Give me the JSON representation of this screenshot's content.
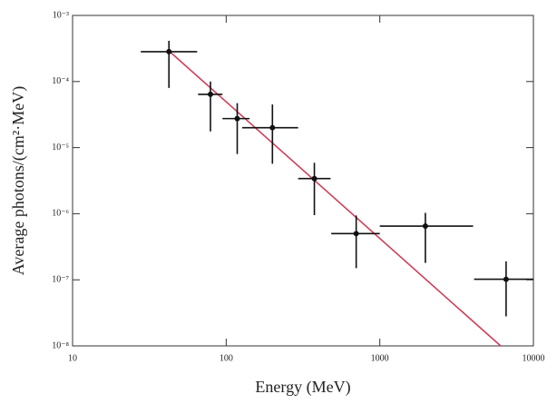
{
  "chart_data": {
    "type": "scatter",
    "x_label": "Energy (MeV)",
    "y_label": "Average photons/(cm²·MeV)",
    "xlog": true,
    "ylog": true,
    "xlim": [
      10,
      10000
    ],
    "ylim": [
      1e-08,
      0.001
    ],
    "xticks": [
      10,
      100,
      1000,
      10000
    ],
    "yticks": [
      {
        "value": 1e-08,
        "label": "10⁻⁸"
      },
      {
        "value": 1e-07,
        "label": "10⁻⁷"
      },
      {
        "value": 1e-06,
        "label": "10⁻⁶"
      },
      {
        "value": 1e-05,
        "label": "10⁻⁵"
      },
      {
        "value": 0.0001,
        "label": "10⁻⁴"
      },
      {
        "value": 0.001,
        "label": "10⁻³"
      }
    ],
    "x": [
      42.4,
      79,
      118,
      200,
      375,
      702,
      1980,
      6640
    ],
    "x_low": [
      27.8,
      65.6,
      94.6,
      127,
      294,
      483,
      1000,
      4110
    ],
    "x_high": [
      64.7,
      94.6,
      142,
      294,
      478,
      1000,
      4050,
      10000
    ],
    "series": [
      {
        "color": "#111111",
        "values": [
          0.000283,
          6.4e-05,
          2.75e-05,
          2e-05,
          3.4e-06,
          5e-07,
          6.5e-07,
          1.02e-07
        ],
        "y_low": [
          8e-05,
          1.76e-05,
          8e-06,
          5.7e-06,
          9.5e-07,
          1.5e-07,
          1.8e-07,
          2.8e-08
        ],
        "y_high": [
          0.000413,
          0.0001,
          4.7e-05,
          4.5e-05,
          5.9e-06,
          9.4e-07,
          1.03e-06,
          1.9e-07
        ]
      }
    ],
    "fit": {
      "color": "#d0405a",
      "x": [
        42.4,
        6120
      ],
      "values": [
        0.00029,
        1e-08
      ]
    }
  }
}
